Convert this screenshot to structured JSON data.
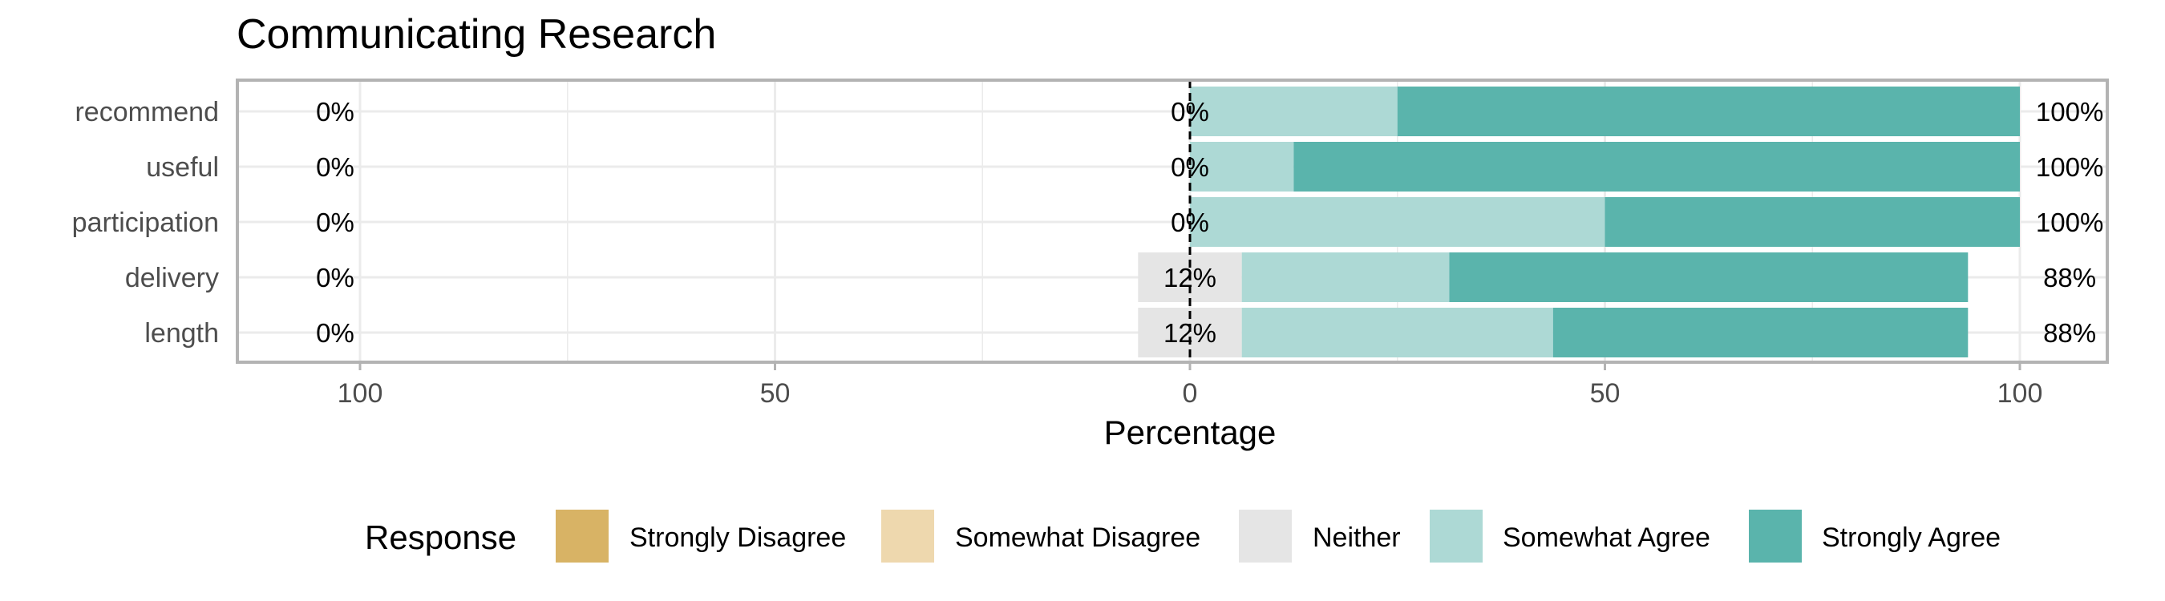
{
  "chart_data": {
    "type": "bar",
    "orientation": "horizontal-diverging",
    "title": "Communicating Research",
    "xlabel": "Percentage",
    "ylabel": "",
    "xlim": [
      -100,
      100
    ],
    "x_ticks": [
      -100,
      -50,
      0,
      50,
      100
    ],
    "x_tick_labels": [
      "100",
      "50",
      "0",
      "50",
      "100"
    ],
    "grid": true,
    "categories": [
      "recommend",
      "useful",
      "participation",
      "delivery",
      "length"
    ],
    "series": [
      {
        "name": "Strongly Disagree",
        "color": "#D8B365",
        "values": [
          0,
          0,
          0,
          0,
          0
        ]
      },
      {
        "name": "Somewhat Disagree",
        "color": "#EED8AE",
        "values": [
          0,
          0,
          0,
          0,
          0
        ]
      },
      {
        "name": "Neither",
        "color": "#E5E5E5",
        "values": [
          0,
          0,
          0,
          12.5,
          12.5
        ]
      },
      {
        "name": "Somewhat Agree",
        "color": "#ADD9D5",
        "values": [
          25,
          12.5,
          50,
          25,
          37.5
        ]
      },
      {
        "name": "Strongly Agree",
        "color": "#5AB4AC",
        "values": [
          75,
          87.5,
          50,
          62.5,
          50
        ]
      }
    ],
    "left_labels": [
      "0%",
      "0%",
      "0%",
      "0%",
      "0%"
    ],
    "center_labels": [
      "0%",
      "0%",
      "0%",
      "12%",
      "12%"
    ],
    "right_labels": [
      "100%",
      "100%",
      "100%",
      "88%",
      "88%"
    ],
    "legend": {
      "title": "Response",
      "position": "bottom",
      "entries": [
        "Strongly Disagree",
        "Somewhat Disagree",
        "Neither",
        "Somewhat Agree",
        "Strongly Agree"
      ]
    }
  }
}
